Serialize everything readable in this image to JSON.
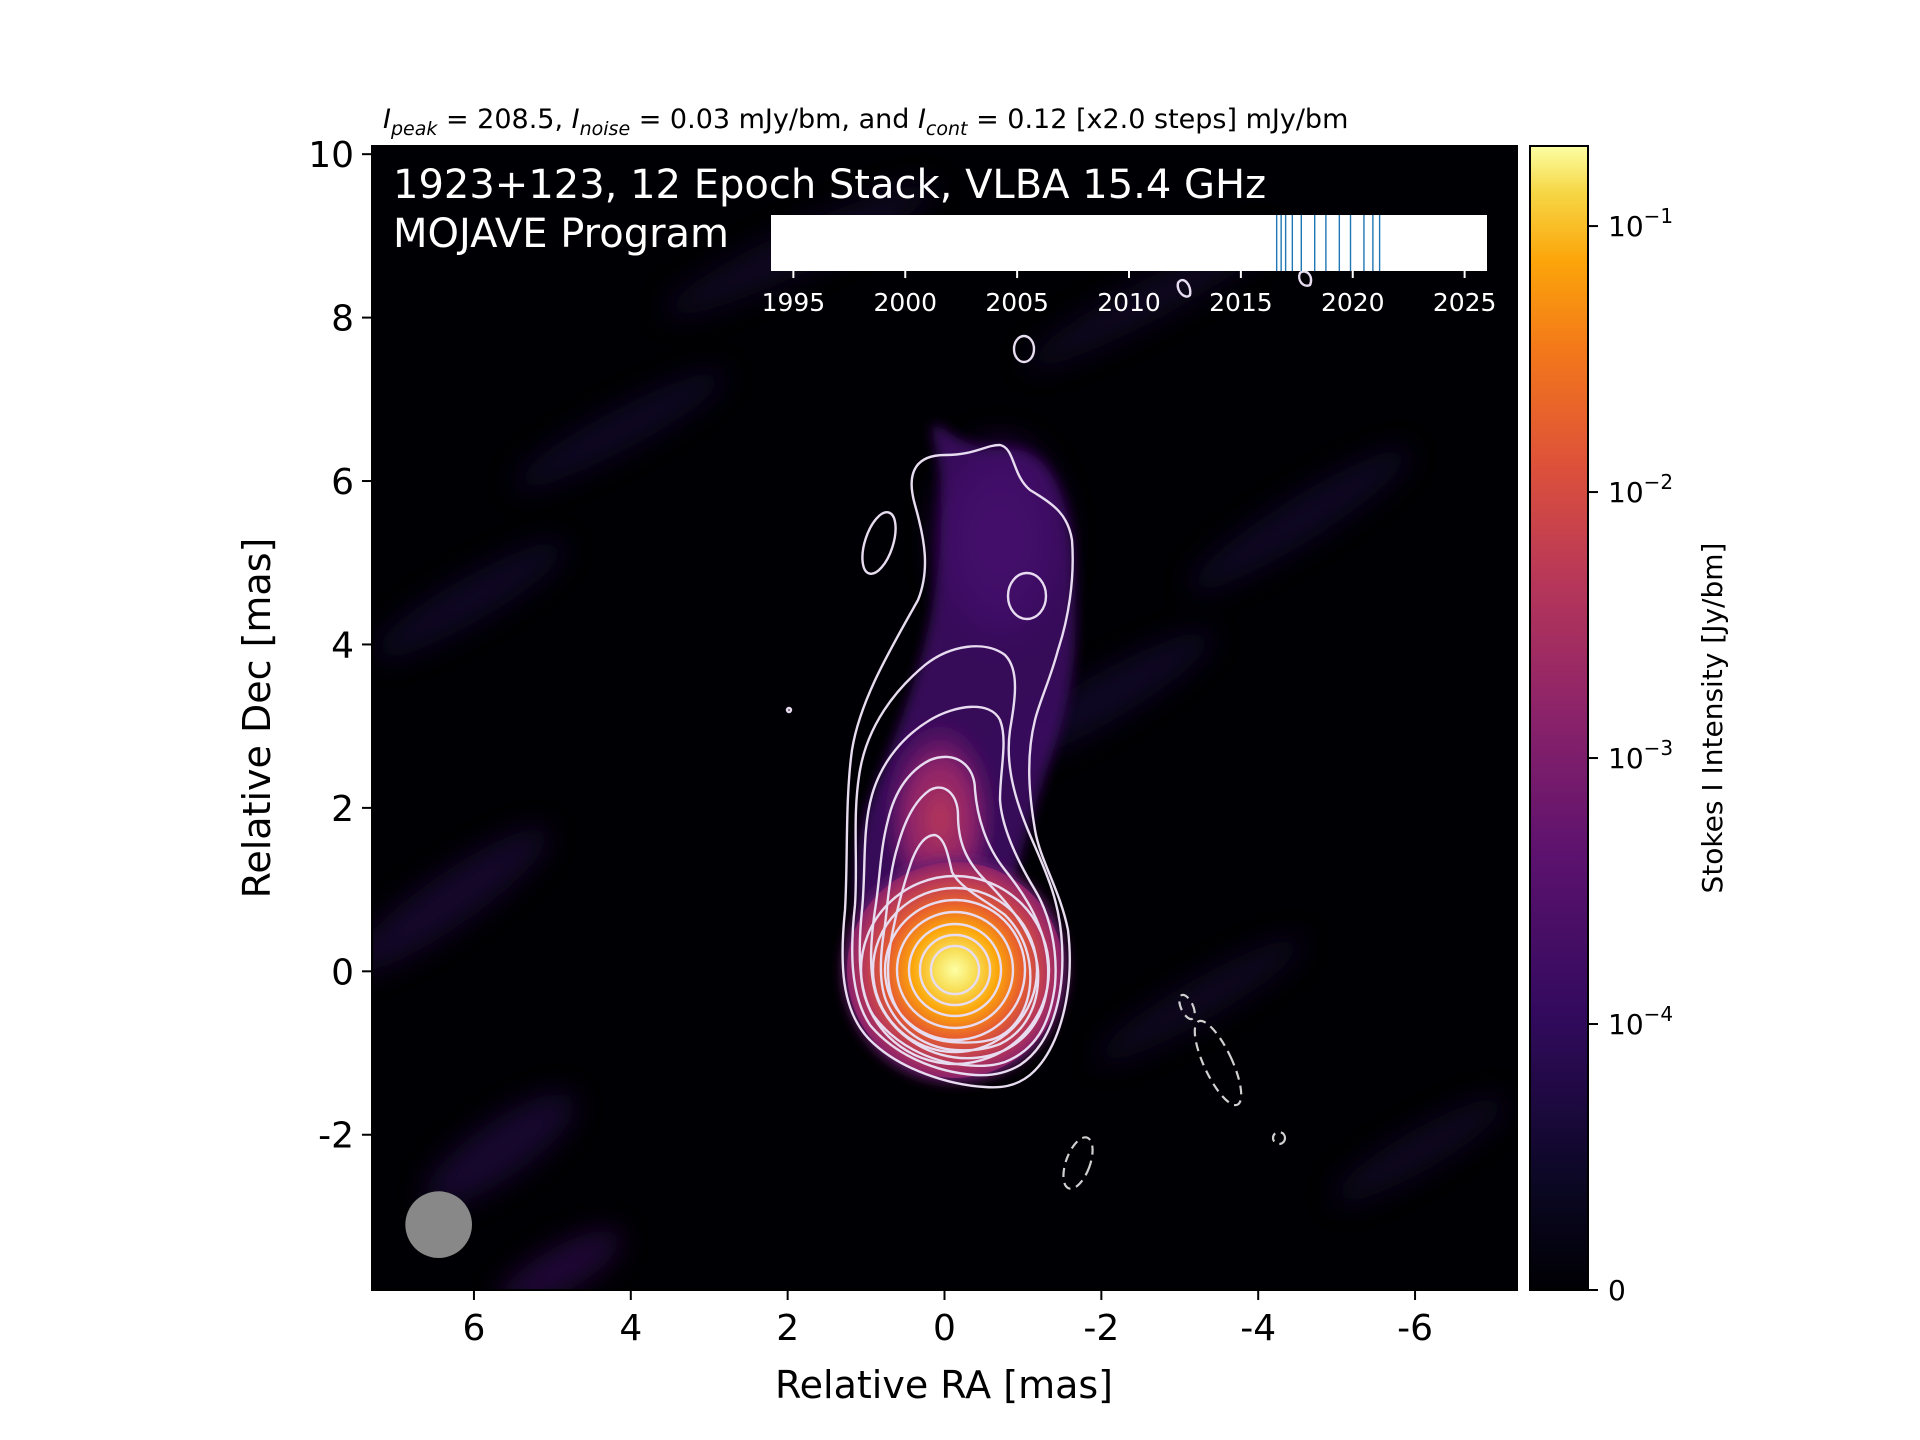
{
  "chart_data": {
    "type": "heatmap",
    "header": {
      "peak_sym": "I",
      "peak_sub": "peak",
      "peak_val": " = 208.5, ",
      "noise_sym": "I",
      "noise_sub": "noise",
      "noise_val": " = 0.03 mJy/bm, and ",
      "cont_sym": "I",
      "cont_sub": "cont",
      "cont_val": " = 0.12 [x2.0 steps] mJy/bm"
    },
    "source_line": "1923+123, 12 Epoch Stack, VLBA 15.4 GHz",
    "program_line": "MOJAVE Program",
    "xlabel": "Relative RA [mas]",
    "ylabel": "Relative Dec [mas]",
    "xlim": [
      7.3,
      -7.3
    ],
    "ylim": [
      -3.9,
      10.1
    ],
    "xticks": [
      6,
      4,
      2,
      0,
      -2,
      -4,
      -6
    ],
    "xtick_labels": [
      "6",
      "4",
      "2",
      "0",
      "-2",
      "-4",
      "-6"
    ],
    "yticks": [
      -2,
      0,
      2,
      4,
      6,
      8,
      10
    ],
    "ytick_labels": [
      "-2",
      "0",
      "2",
      "4",
      "6",
      "8",
      "10"
    ],
    "colorbar": {
      "label": "Stokes I Intensity [Jy/bm]",
      "scale": "symlog",
      "colormap": "inferno",
      "tick_values": [
        0,
        0.0001,
        0.001,
        0.01,
        0.1
      ],
      "tick_labels": [
        {
          "base": "0",
          "exp": ""
        },
        {
          "base": "10",
          "exp": "−4"
        },
        {
          "base": "10",
          "exp": "−3"
        },
        {
          "base": "10",
          "exp": "−2"
        },
        {
          "base": "10",
          "exp": "−1"
        }
      ]
    },
    "epoch_timeline": {
      "xlim": [
        1994,
        2026
      ],
      "ticks": [
        1995,
        2000,
        2005,
        2010,
        2015,
        2020,
        2025
      ],
      "tick_labels": [
        "1995",
        "2000",
        "2005",
        "2010",
        "2015",
        "2020",
        "2025"
      ],
      "epochs": [
        2016.6,
        2016.8,
        2017.0,
        2017.3,
        2017.7,
        2018.3,
        2018.8,
        2019.4,
        2019.9,
        2020.5,
        2020.9,
        2021.2
      ],
      "color": "#1f77b4"
    },
    "beam": {
      "ra": 6.45,
      "dec": -3.1,
      "diameter_mas": 0.85,
      "color": "#888888"
    },
    "contour_color": "#e8dcf0",
    "background_color": "#000004"
  }
}
